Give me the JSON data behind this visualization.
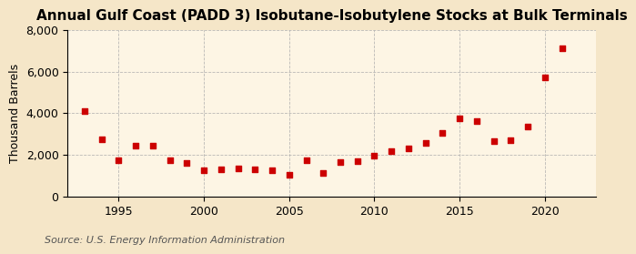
{
  "title": "Annual Gulf Coast (PADD 3) Isobutane-Isobutylene Stocks at Bulk Terminals",
  "ylabel": "Thousand Barrels",
  "source": "Source: U.S. Energy Information Administration",
  "background_color": "#f5e6c8",
  "plot_background_color": "#fdf5e4",
  "marker_color": "#cc0000",
  "years": [
    1993,
    1994,
    1995,
    1996,
    1997,
    1998,
    1999,
    2000,
    2001,
    2002,
    2003,
    2004,
    2005,
    2006,
    2007,
    2008,
    2009,
    2010,
    2011,
    2012,
    2013,
    2014,
    2015,
    2016,
    2017,
    2018,
    2019,
    2020,
    2021
  ],
  "values": [
    4100,
    2750,
    1750,
    2450,
    2450,
    1750,
    1600,
    1250,
    1300,
    1350,
    1300,
    1250,
    1050,
    1750,
    1100,
    1650,
    1700,
    1950,
    2150,
    2300,
    2550,
    3050,
    3750,
    3600,
    2650,
    2700,
    3350,
    5700,
    7100
  ],
  "xlim": [
    1992,
    2023
  ],
  "ylim": [
    0,
    8000
  ],
  "yticks": [
    0,
    2000,
    4000,
    6000,
    8000
  ],
  "xticks": [
    1995,
    2000,
    2005,
    2010,
    2015,
    2020
  ],
  "grid_color": "#aaaaaa",
  "title_fontsize": 11,
  "label_fontsize": 9,
  "tick_fontsize": 9,
  "source_fontsize": 8
}
